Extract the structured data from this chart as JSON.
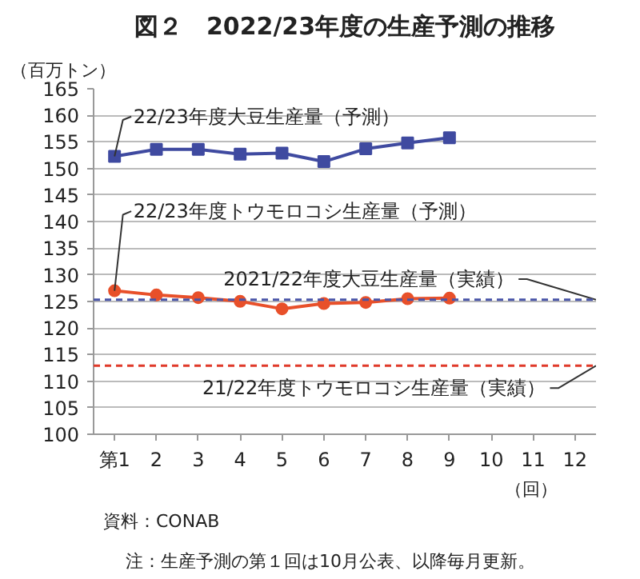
{
  "chart_data": {
    "type": "line",
    "title": "図２　2022/23年度の生産予測の推移",
    "ylabel": "（百万トン）",
    "xlabel": "（回）",
    "x": [
      1,
      2,
      3,
      4,
      5,
      6,
      7,
      8,
      9
    ],
    "series": [
      {
        "name": "22/23年度大豆生産量（予測）",
        "color": "#3f4aa0",
        "marker": "square",
        "values": [
          152.3,
          153.6,
          153.6,
          152.7,
          152.9,
          151.3,
          153.7,
          154.8,
          155.8
        ]
      },
      {
        "name": "22/23年度トウモロコシ生産量（予測）",
        "color": "#e8502a",
        "marker": "circle",
        "values": [
          127.0,
          126.2,
          125.7,
          125.0,
          123.6,
          124.6,
          124.8,
          125.5,
          125.6
        ]
      }
    ],
    "ref_lines": [
      {
        "axis": "y",
        "value": 125.3,
        "label": "2021/22年度大豆生産量（実績）",
        "color": "#4a55a8",
        "line_style": "dashed"
      },
      {
        "axis": "y",
        "value": 112.9,
        "label": "21/22年度トウモロコシ生産量（実績）",
        "color": "#e03a2a",
        "line_style": "dashed"
      }
    ],
    "xlim": [
      0.5,
      12.5
    ],
    "xticks": [
      {
        "value": 1,
        "label": "第1"
      },
      2,
      3,
      4,
      5,
      6,
      7,
      8,
      9,
      10,
      11,
      12
    ],
    "ylim": [
      100,
      165
    ],
    "yticks": [
      100,
      105,
      110,
      115,
      120,
      125,
      130,
      135,
      140,
      145,
      150,
      155,
      160,
      165
    ],
    "grid": "y",
    "line_style": "solid",
    "annotations": [
      "資料：CONAB",
      "注：生産予測の第１回は10月公表、以降毎月更新。"
    ]
  }
}
